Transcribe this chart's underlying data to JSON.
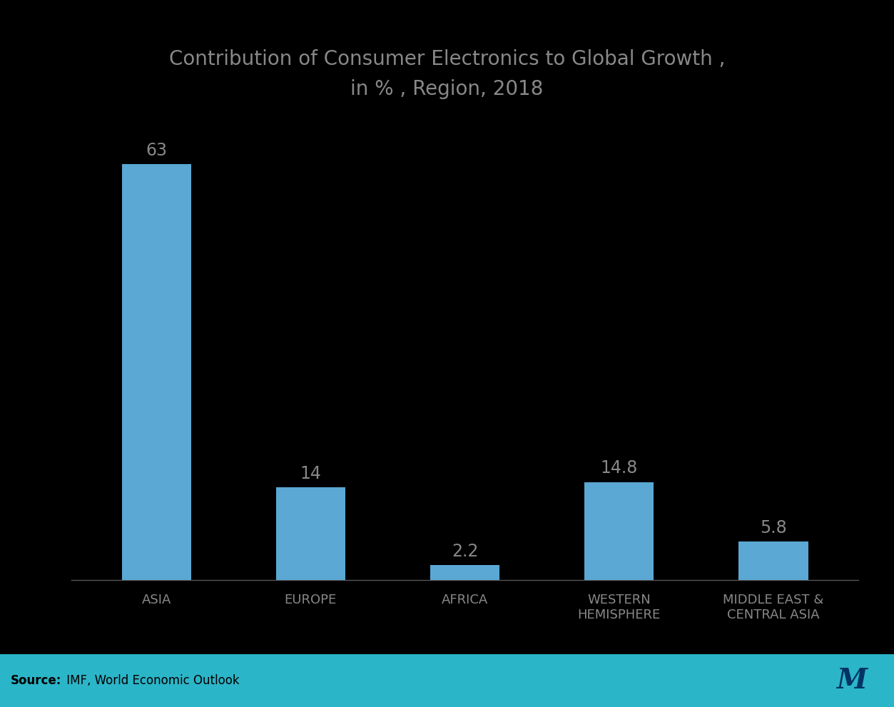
{
  "title": "Contribution of Consumer Electronics to Global Growth ,\nin % , Region, 2018",
  "categories": [
    "ASIA",
    "EUROPE",
    "AFRICA",
    "WESTERN\nHEMISPHERE",
    "MIDDLE EAST &\nCENTRAL ASIA"
  ],
  "values": [
    63,
    14,
    2.2,
    14.8,
    5.8
  ],
  "bar_color": "#5BA8D4",
  "background_color": "#000000",
  "plot_background": "#000000",
  "title_color": "#888888",
  "tick_color": "#888888",
  "bar_label_color": "#888888",
  "title_fontsize": 20,
  "tick_fontsize": 13,
  "bar_label_fontsize": 17,
  "source_fontsize": 12,
  "ylim": [
    0,
    75
  ],
  "footer_color": "#2BB5C8",
  "footer_text_color": "#000000",
  "source_bold": "Source:",
  "source_rest": " IMF, World Economic Outlook",
  "bottom_spine_color": "#555555"
}
